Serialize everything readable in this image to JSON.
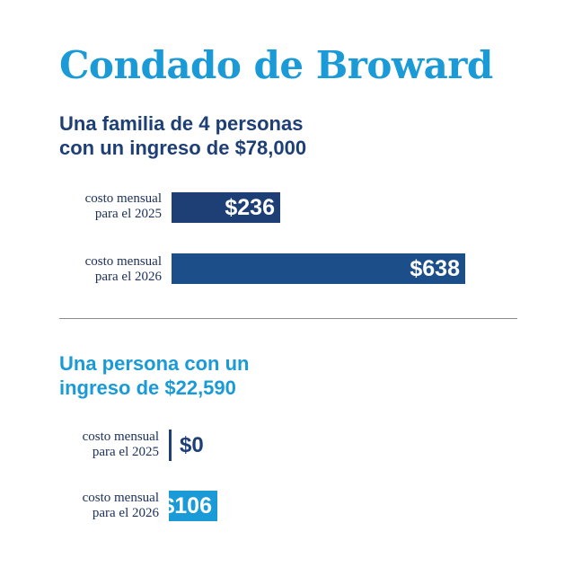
{
  "title": "Condado de Broward",
  "sections": [
    {
      "subtitle_line1": "Una familia de 4 personas",
      "subtitle_line2": "con un ingreso de $78,000",
      "rows": [
        {
          "label_line1": "costo mensual",
          "label_line2": "para el 2025",
          "value_label": "$236"
        },
        {
          "label_line1": "costo mensual",
          "label_line2": "para el 2026",
          "value_label": "$638"
        }
      ]
    },
    {
      "subtitle_line1": "Una persona con un",
      "subtitle_line2": "ingreso de $22,590",
      "rows": [
        {
          "label_line1": "costo mensual",
          "label_line2": "para el 2025",
          "value_label": "$0"
        },
        {
          "label_line1": "costo mensual",
          "label_line2": "para el 2026",
          "value_label": "$106"
        }
      ]
    }
  ],
  "colors": {
    "title": "#1a9ad6",
    "family_bar_2025": "#1d3f76",
    "family_bar_2026": "#1c4f8a",
    "individual_bar": "#1a9ad6",
    "zero_line": "#1d3f76"
  },
  "chart_data": [
    {
      "type": "bar",
      "orientation": "horizontal",
      "categories": [
        "costo mensual para el 2025",
        "costo mensual para el 2026"
      ],
      "values": [
        236,
        638
      ]
    },
    {
      "type": "bar",
      "orientation": "horizontal",
      "categories": [
        "costo mensual para el 2025",
        "costo mensual para el 2026"
      ],
      "values": [
        0,
        106
      ]
    }
  ]
}
